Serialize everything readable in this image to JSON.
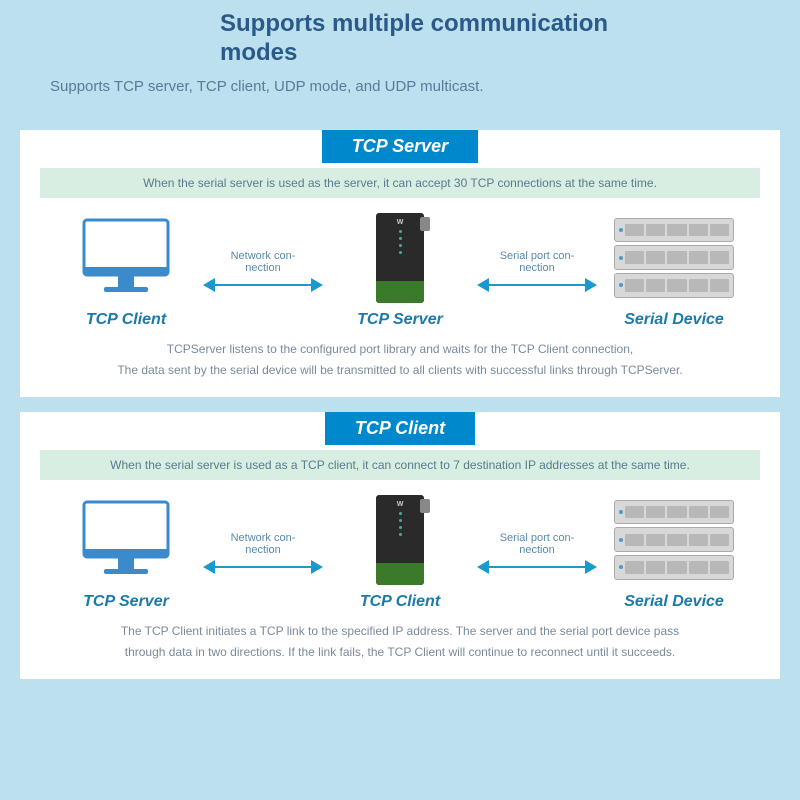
{
  "colors": {
    "page_bg": "#bce0ed",
    "panel_bg": "#ffffff",
    "header_text": "#2b5a8a",
    "subtitle_text": "#5a7a9a",
    "badge_bg": "#0088cc",
    "badge_text": "#ffffff",
    "green_bar_bg": "#d9eee3",
    "green_bar_text": "#5a7a8a",
    "node_label": "#1a7aaa",
    "arrow": "#1a9acc",
    "arrow_label": "#5a8aaa",
    "desc_text": "#7a8a9a",
    "monitor_stroke": "#3a8acc",
    "device_body": "#2a2a2a",
    "device_accent": "#3a7a2a",
    "rack_body": "#d8d8d8",
    "rack_slot": "#b8b8b8"
  },
  "header": {
    "title_line1": "Supports multiple communication",
    "title_line2": "modes",
    "subtitle": "Supports TCP server, TCP client, UDP mode, and UDP multicast."
  },
  "panels": {
    "server": {
      "badge": "TCP Server",
      "green_bar": "When the serial server is used as the server, it can accept 30 TCP connections at the same time.",
      "left_label": "TCP Client",
      "mid_label": "TCP Server",
      "right_label": "Serial Device",
      "arrow1_label": "Network con-\nnection",
      "arrow2_label": "Serial port con-\nnection",
      "desc1": "TCPServer listens to the configured port library and waits for the TCP Client connection,",
      "desc2": "The data sent by the serial device will be transmitted to all clients with successful links through TCPServer."
    },
    "client": {
      "badge": "TCP Client",
      "green_bar": "When the serial server is used as a TCP client, it can connect to 7 destination IP addresses at the same time.",
      "left_label": "TCP Server",
      "mid_label": "TCP Client",
      "right_label": "Serial Device",
      "arrow1_label": "Network con-\nnection",
      "arrow2_label": "Serial port con-\nnection",
      "desc1": "The TCP Client initiates a TCP link to the specified IP address. The server and the serial port device pass",
      "desc2": "through data in two directions. If the link fails, the TCP Client will continue to reconnect until it succeeds."
    }
  }
}
